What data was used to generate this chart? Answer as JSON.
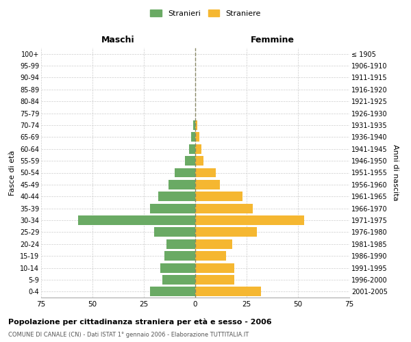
{
  "age_groups": [
    "0-4",
    "5-9",
    "10-14",
    "15-19",
    "20-24",
    "25-29",
    "30-34",
    "35-39",
    "40-44",
    "45-49",
    "50-54",
    "55-59",
    "60-64",
    "65-69",
    "70-74",
    "75-79",
    "80-84",
    "85-89",
    "90-94",
    "95-99",
    "100+"
  ],
  "birth_years": [
    "2001-2005",
    "1996-2000",
    "1991-1995",
    "1986-1990",
    "1981-1985",
    "1976-1980",
    "1971-1975",
    "1966-1970",
    "1961-1965",
    "1956-1960",
    "1951-1955",
    "1946-1950",
    "1941-1945",
    "1936-1940",
    "1931-1935",
    "1926-1930",
    "1921-1925",
    "1916-1920",
    "1911-1915",
    "1906-1910",
    "≤ 1905"
  ],
  "males": [
    22,
    16,
    17,
    15,
    14,
    20,
    57,
    22,
    18,
    13,
    10,
    5,
    3,
    2,
    1,
    0,
    0,
    0,
    0,
    0,
    0
  ],
  "females": [
    32,
    19,
    19,
    15,
    18,
    30,
    53,
    28,
    23,
    12,
    10,
    4,
    3,
    2,
    1,
    0,
    0,
    0,
    0,
    0,
    0
  ],
  "male_color": "#6aaa64",
  "female_color": "#f5b731",
  "background_color": "#ffffff",
  "grid_color": "#cccccc",
  "title": "Popolazione per cittadinanza straniera per età e sesso - 2006",
  "subtitle": "COMUNE DI CANALE (CN) - Dati ISTAT 1° gennaio 2006 - Elaborazione TUTTITALIA.IT",
  "xlabel_left": "Maschi",
  "xlabel_right": "Femmine",
  "ylabel_left": "Fasce di età",
  "ylabel_right": "Anni di nascita",
  "legend_male": "Stranieri",
  "legend_female": "Straniere",
  "xlim": 75,
  "bar_height": 0.8
}
